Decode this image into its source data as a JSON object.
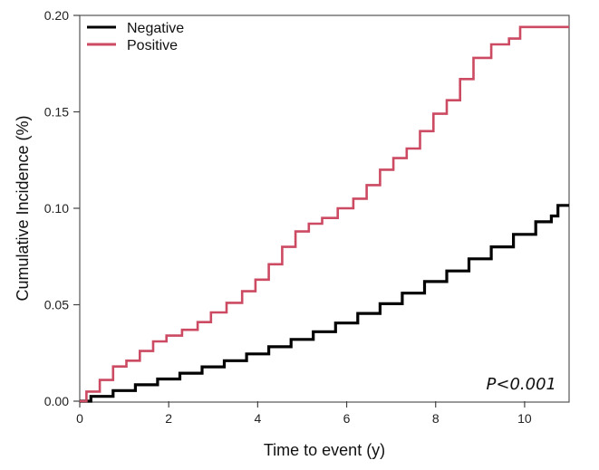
{
  "chart_data": {
    "type": "line",
    "title": "",
    "xlabel": "Time to event (y)",
    "ylabel": "Cumulative Incidence (%)",
    "xlim": [
      0,
      11
    ],
    "ylim": [
      0,
      0.2
    ],
    "x_ticks": [
      0,
      2,
      4,
      6,
      8,
      10
    ],
    "x_tick_labels": [
      "0",
      "2",
      "4",
      "6",
      "8",
      "10"
    ],
    "y_ticks": [
      0,
      0.05,
      0.1,
      0.15,
      0.2
    ],
    "y_tick_labels": [
      "0.00",
      "0.05",
      "0.10",
      "0.15",
      "0.20"
    ],
    "grid": false,
    "legend_position": "top-left",
    "annotation": "P<0.001",
    "series": [
      {
        "name": "Negative",
        "color": "#000000",
        "x": [
          0,
          0.5,
          1,
          1.5,
          2,
          2.5,
          3,
          3.5,
          4,
          4.5,
          5,
          5.5,
          6,
          6.5,
          7,
          7.5,
          8,
          8.5,
          9,
          9.5,
          10,
          10.5,
          10.7,
          10.8,
          11
        ],
        "y": [
          0,
          0.0025,
          0.0055,
          0.0085,
          0.0115,
          0.0145,
          0.0178,
          0.021,
          0.0245,
          0.0282,
          0.032,
          0.036,
          0.0405,
          0.0455,
          0.0505,
          0.056,
          0.062,
          0.0675,
          0.0738,
          0.08,
          0.0865,
          0.093,
          0.096,
          0.1015,
          0.1015
        ]
      },
      {
        "name": "Positive",
        "color": "#cc4a62",
        "x": [
          0,
          0.3,
          0.6,
          0.9,
          1.2,
          1.5,
          1.8,
          2.1,
          2.5,
          2.8,
          3.1,
          3.5,
          3.8,
          4.1,
          4.4,
          4.7,
          5,
          5.3,
          5.6,
          6,
          6.3,
          6.6,
          6.9,
          7.2,
          7.5,
          7.8,
          8.1,
          8.4,
          8.7,
          9,
          9.5,
          9.8,
          10,
          10.5,
          11
        ],
        "y": [
          0,
          0.005,
          0.011,
          0.018,
          0.021,
          0.026,
          0.031,
          0.034,
          0.037,
          0.041,
          0.046,
          0.051,
          0.057,
          0.063,
          0.071,
          0.08,
          0.088,
          0.092,
          0.095,
          0.1,
          0.105,
          0.112,
          0.12,
          0.126,
          0.131,
          0.14,
          0.149,
          0.156,
          0.167,
          0.178,
          0.185,
          0.188,
          0.194,
          0.194,
          0.194
        ]
      }
    ]
  }
}
